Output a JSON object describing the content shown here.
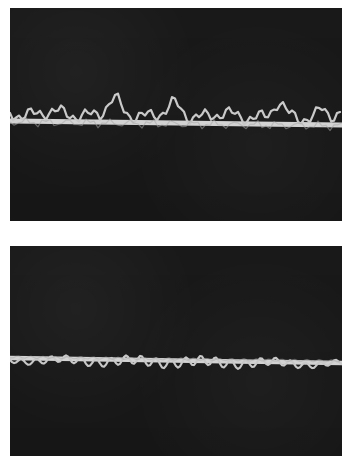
{
  "figure": {
    "panels": [
      {
        "id": "top",
        "baseline_color": "#f2f2f2",
        "trace_color": "#e6e6e6",
        "trace_amplitude": 0.72
      },
      {
        "id": "bottom",
        "baseline_color": "#f2f2f2",
        "trace_color": "#e6e6e6",
        "trace_amplitude": 0.38
      }
    ]
  }
}
